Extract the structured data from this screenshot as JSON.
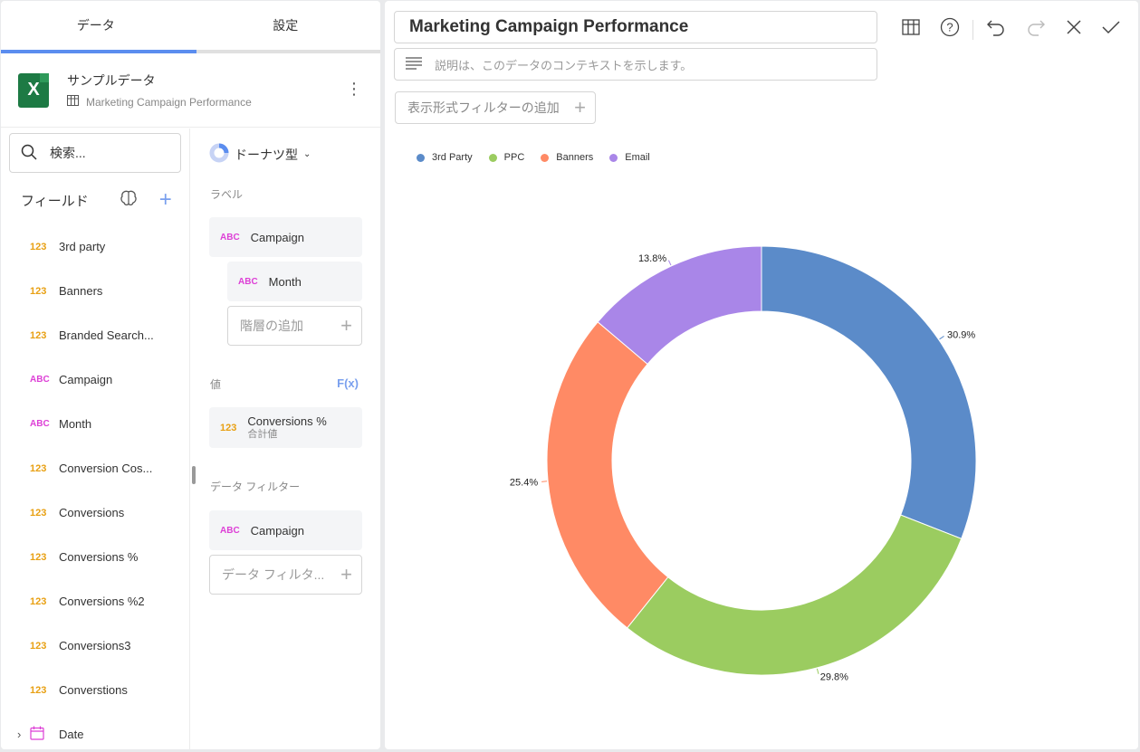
{
  "tabs": [
    {
      "label": "データ",
      "active": true
    },
    {
      "label": "設定",
      "active": false
    }
  ],
  "source": {
    "title": "サンプルデータ",
    "subtitle": "Marketing Campaign Performance"
  },
  "search": {
    "placeholder": "検索..."
  },
  "fields_header": {
    "label": "フィールド"
  },
  "fields": [
    {
      "type": "123",
      "name": "3rd party"
    },
    {
      "type": "123",
      "name": "Banners"
    },
    {
      "type": "123",
      "name": "Branded Search..."
    },
    {
      "type": "ABC",
      "name": "Campaign"
    },
    {
      "type": "ABC",
      "name": "Month"
    },
    {
      "type": "123",
      "name": "Conversion Cos..."
    },
    {
      "type": "123",
      "name": "Conversions"
    },
    {
      "type": "123",
      "name": "Conversions %"
    },
    {
      "type": "123",
      "name": "Conversions %2"
    },
    {
      "type": "123",
      "name": "Conversions3"
    },
    {
      "type": "123",
      "name": "Converstions"
    }
  ],
  "date_field": {
    "name": "Date"
  },
  "config": {
    "chart_type": "ドーナツ型",
    "label_section": "ラベル",
    "label_field": {
      "type": "ABC",
      "name": "Campaign"
    },
    "label_sub_field": {
      "type": "ABC",
      "name": "Month"
    },
    "add_hierarchy": "階層の追加",
    "value_section": "値",
    "fx": "F(x)",
    "value_field": {
      "type": "123",
      "name": "Conversions %",
      "agg": "合計値"
    },
    "filter_section": "データ フィルター",
    "filter_field": {
      "type": "ABC",
      "name": "Campaign"
    },
    "add_filter": "データ フィルタ..."
  },
  "editor": {
    "title": "Marketing Campaign Performance",
    "description_placeholder": "説明は、このデータのコンテキストを示します。",
    "visual_filter_label": "表示形式フィルターの追加"
  },
  "chart_data": {
    "type": "donut",
    "categories": [
      "3rd Party",
      "PPC",
      "Banners",
      "Email"
    ],
    "values": [
      30.9,
      29.8,
      25.4,
      13.8
    ],
    "labels": [
      "30.9%",
      "29.8%",
      "25.4%",
      "13.8%"
    ],
    "colors": [
      "#5b8bc9",
      "#9bcc60",
      "#ff8a65",
      "#a986e8"
    ],
    "legend": "top-left"
  }
}
